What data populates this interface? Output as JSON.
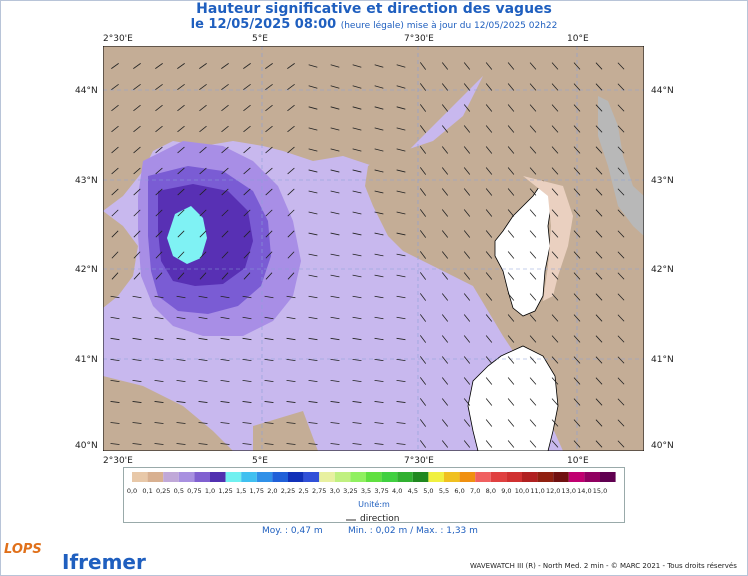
{
  "title": "Hauteur significative et direction des vagues",
  "subtitle_date": "le 12/05/2025 08:00",
  "subtitle_note": "(heure légale) mise à jour du 12/05/2025 02h22",
  "lon_ticks": [
    "2°30'E",
    "5°E",
    "7°30'E",
    "10°E"
  ],
  "lat_ticks": [
    "44°N",
    "43°N",
    "42°N",
    "41°N",
    "40°N"
  ],
  "legend": {
    "labels": [
      "0,0",
      "0,1",
      "0,25",
      "0,5",
      "0,75",
      "1,0",
      "1,25",
      "1,5",
      "1,75",
      "2,0",
      "2,25",
      "2,5",
      "2,75",
      "3,0",
      "3,25",
      "3,5",
      "3,75",
      "4,0",
      "4,5",
      "5,0",
      "5,5",
      "6,0",
      "7,0",
      "8,0",
      "9,0",
      "10,0",
      "11,0",
      "12,0",
      "13,0",
      "14,0",
      "15,0"
    ],
    "colors": [
      "#e8c8a8",
      "#d8b090",
      "#c0a8d8",
      "#a890e0",
      "#8060d0",
      "#5030b0",
      "#70f0f0",
      "#40c0f0",
      "#3090e8",
      "#2060d8",
      "#1030b8",
      "#3050d8",
      "#e8f0a0",
      "#c0f080",
      "#90f060",
      "#60e040",
      "#40d040",
      "#30b030",
      "#208820",
      "#f0f040",
      "#f0c020",
      "#f09010",
      "#f06060",
      "#e04040",
      "#d03030",
      "#b02020",
      "#902010",
      "#701010",
      "#c00070",
      "#900060",
      "#600050"
    ],
    "unit": "Unité:m",
    "direction_label": "direction"
  },
  "stats": {
    "moy": "Moy. : 0,47 m",
    "min": "Min. : 0,02 m / Max. : 1,33 m"
  },
  "footer": "WAVEWATCH III (R) - North Med. 2 min - © MARC 2021 - Tous droits réservés",
  "logos": {
    "lops": "LOPS",
    "ifremer": "Ifremer"
  },
  "colors": {
    "land": "#c4ad96",
    "land_shadow": "#b0b0b0",
    "sea_low": "#c8b8ee",
    "sea_mid": "#a88ee6",
    "sea_high": "#7a5cd4",
    "sea_peak": "#5830b4",
    "sea_max": "#7ff2f4",
    "accent": "#1f5fbf"
  }
}
